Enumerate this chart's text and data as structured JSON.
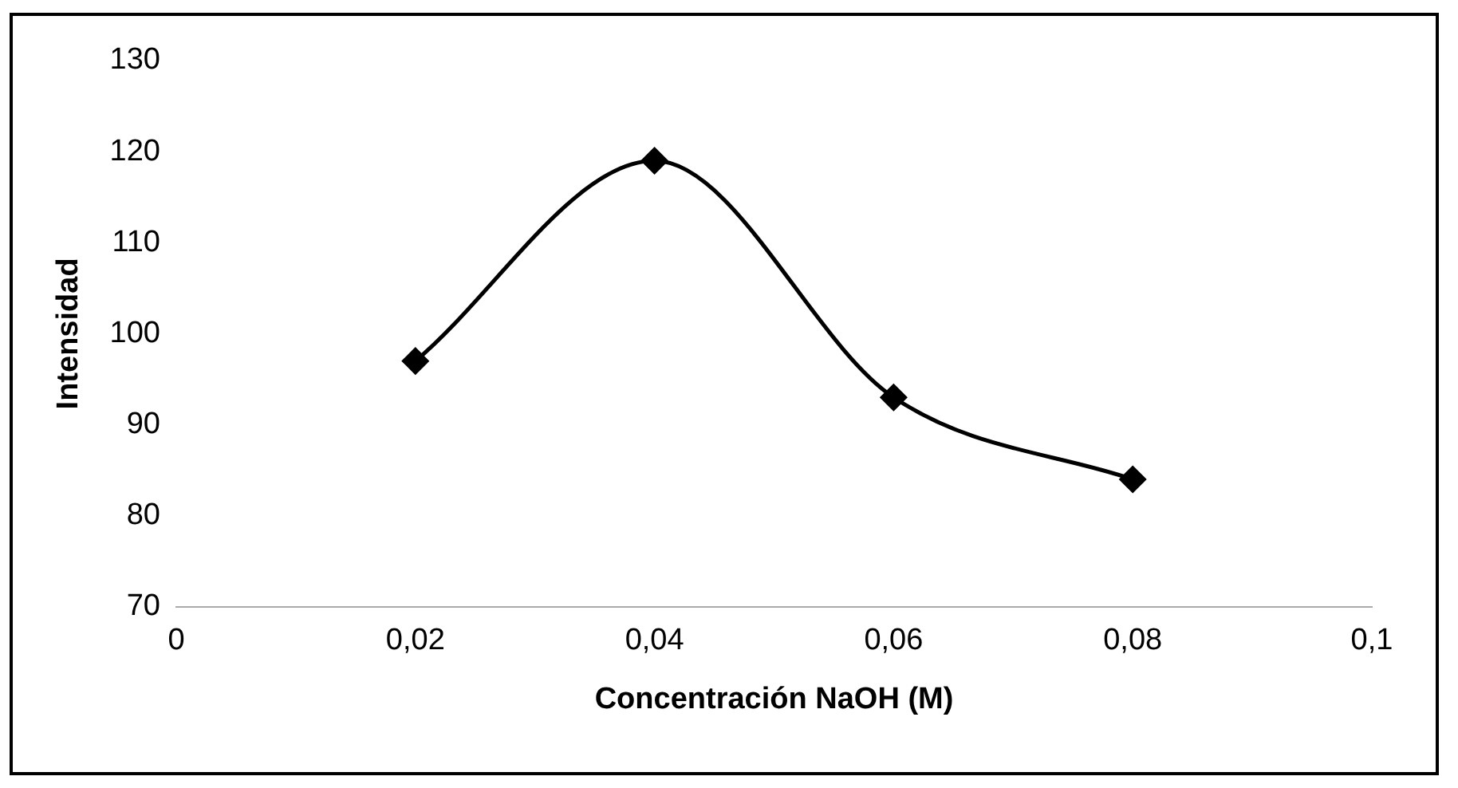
{
  "chart_data": {
    "type": "line",
    "xlabel": "Concentración NaOH (M)",
    "ylabel": "Intensidad",
    "x": [
      0.02,
      0.04,
      0.06,
      0.08
    ],
    "series": [
      {
        "color": "#000000",
        "values": [
          97,
          119,
          93,
          84
        ]
      }
    ],
    "xlim": [
      0,
      0.1
    ],
    "xticks": [
      {
        "value": 0,
        "label": "0"
      },
      {
        "value": 0.02,
        "label": "0,02"
      },
      {
        "value": 0.04,
        "label": "0,04"
      },
      {
        "value": 0.06,
        "label": "0,06"
      },
      {
        "value": 0.08,
        "label": "0,08"
      },
      {
        "value": 0.1,
        "label": "0,1"
      }
    ],
    "ylim": [
      70,
      130
    ],
    "yticks": [
      70,
      80,
      90,
      100,
      110,
      120,
      130
    ],
    "grid": false,
    "legend": false,
    "marker": "diamond",
    "line_style": "solid"
  }
}
